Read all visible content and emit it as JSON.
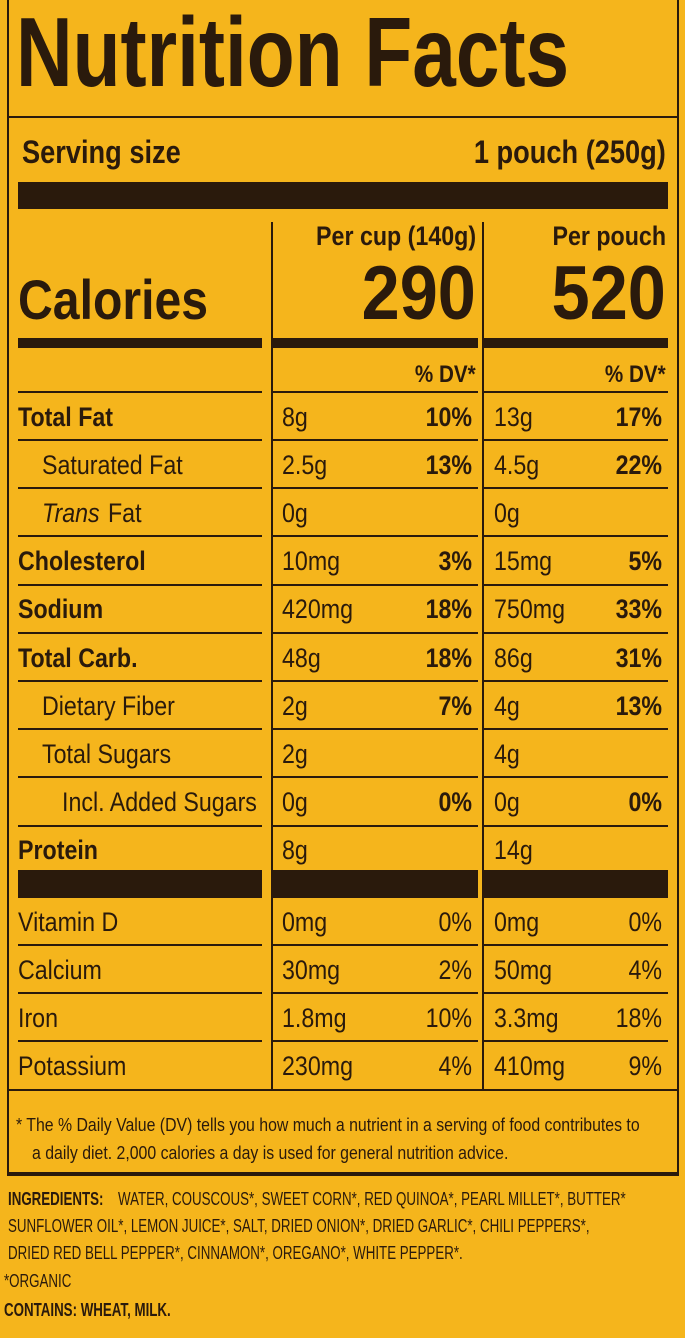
{
  "title": "Nutrition Facts",
  "serving": {
    "label": "Serving size",
    "value": "1 pouch (250g)"
  },
  "calories": {
    "label": "Calories",
    "columns": [
      {
        "header": "Per cup (140g)",
        "value": 290,
        "dv_label": "% DV*"
      },
      {
        "header": "Per pouch",
        "value": 520,
        "dv_label": "% DV*"
      }
    ]
  },
  "nutrients": [
    {
      "label": "Total Fat",
      "style": "bold",
      "cells": [
        "8g",
        "10%",
        "13g",
        "17%"
      ]
    },
    {
      "label": "Saturated Fat",
      "style": "indent",
      "cells": [
        "2.5g",
        "13%",
        "4.5g",
        "22%"
      ]
    },
    {
      "label_italic": "Trans",
      "label": "Fat",
      "style": "indent",
      "cells": [
        "0g",
        null,
        "0g",
        null
      ]
    },
    {
      "label": "Cholesterol",
      "style": "bold",
      "cells": [
        "10mg",
        "3%",
        "15mg",
        "5%"
      ]
    },
    {
      "label": "Sodium",
      "style": "bold",
      "cells": [
        "420mg",
        "18%",
        "750mg",
        "33%"
      ]
    },
    {
      "label": "Total Carb.",
      "style": "bold",
      "cells": [
        "48g",
        "18%",
        "86g",
        "31%"
      ]
    },
    {
      "label": "Dietary Fiber",
      "style": "indent",
      "cells": [
        "2g",
        "7%",
        "4g",
        "13%"
      ]
    },
    {
      "label": "Total Sugars",
      "style": "indent",
      "cells": [
        "2g",
        null,
        "4g",
        null
      ]
    },
    {
      "label": "Incl. Added Sugars",
      "style": "indent2",
      "cells": [
        "0g",
        "0%",
        "0g",
        "0%"
      ]
    },
    {
      "label": "Protein",
      "style": "bold",
      "cells": [
        "8g",
        null,
        "14g",
        null
      ]
    }
  ],
  "vitamins": [
    {
      "label": "Vitamin D",
      "cells": [
        "0mg",
        "0%",
        "0mg",
        "0%"
      ]
    },
    {
      "label": "Calcium",
      "cells": [
        "30mg",
        "2%",
        "50mg",
        "4%"
      ]
    },
    {
      "label": "Iron",
      "cells": [
        "1.8mg",
        "10%",
        "3.3mg",
        "18%"
      ]
    },
    {
      "label": "Potassium",
      "cells": [
        "230mg",
        "4%",
        "410mg",
        "9%"
      ]
    }
  ],
  "footnote": [
    "* The % Daily Value (DV) tells you how much a nutrient in a serving of food contributes to",
    "a daily diet. 2,000 calories a day is used for general nutrition advice."
  ],
  "ingredients": {
    "label": "INGREDIENTS:",
    "lines": [
      "WATER, COUSCOUS*, SWEET CORN*, RED QUINOA*, PEARL MILLET*, BUTTER*",
      "SUNFLOWER OIL*, LEMON JUICE*, SALT, DRIED ONION*, DRIED GARLIC*, CHILI PEPPERS*,",
      "DRIED RED BELL PEPPER*, CINNAMON*, OREGANO*, WHITE PEPPER*."
    ],
    "organic_note": "*ORGANIC",
    "contains": "CONTAINS: WHEAT, MILK."
  }
}
